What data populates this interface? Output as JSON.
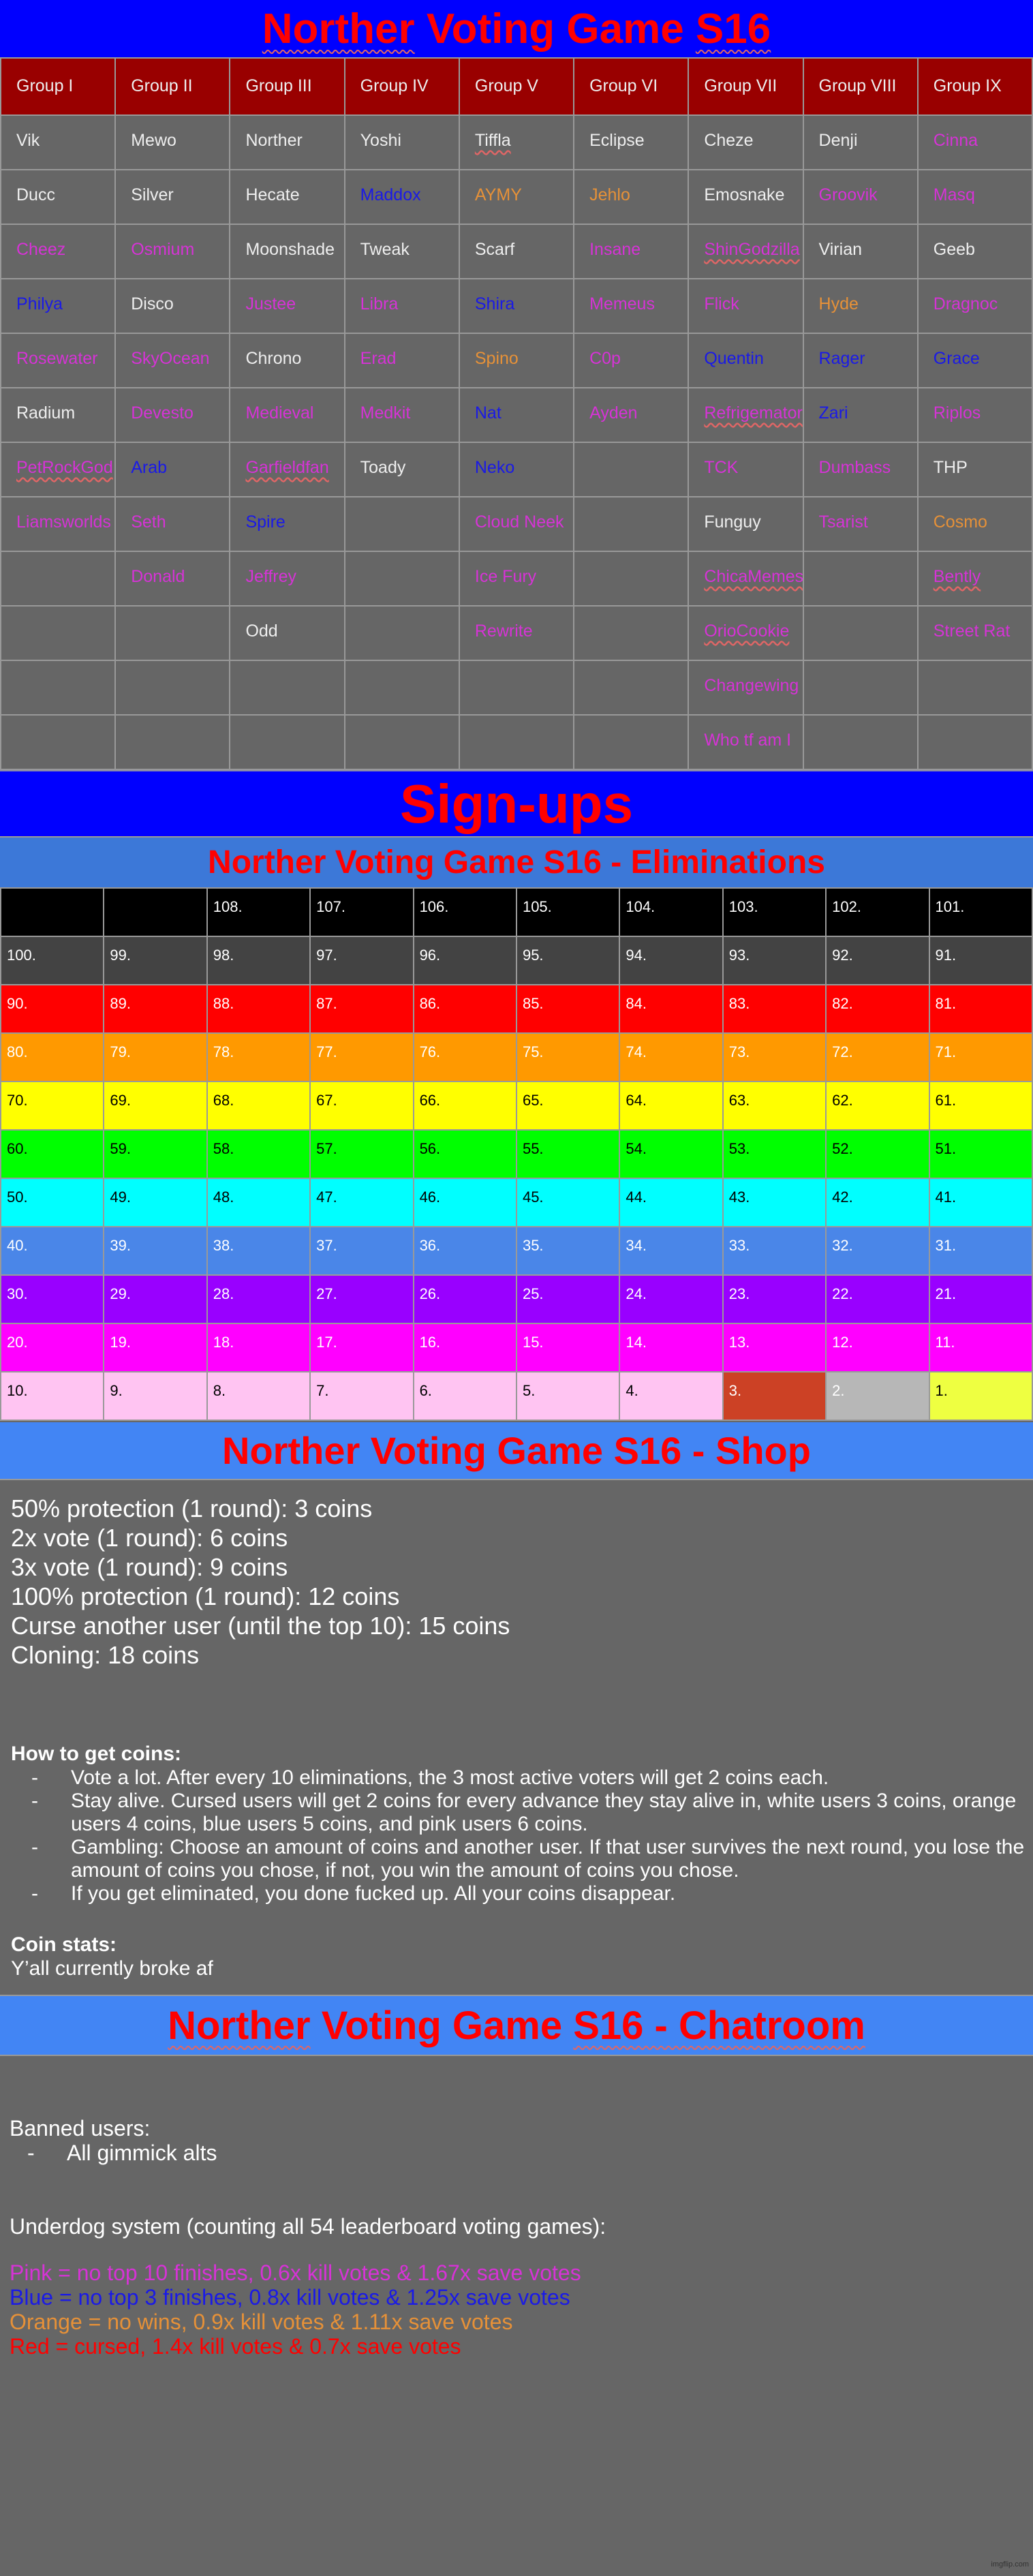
{
  "title": {
    "prefix": "Norther",
    "mid": " Voting Game ",
    "suffix": "S16"
  },
  "colors": {
    "white": "#eeeeee",
    "pink": "#d633d6",
    "blue": "#1a1ae6",
    "orange": "#e69138",
    "red": "#ff0000"
  },
  "groups": [
    {
      "header": "Group I",
      "members": [
        {
          "name": "Vik",
          "tier": "white"
        },
        {
          "name": "Ducc",
          "tier": "white"
        },
        {
          "name": "Cheez",
          "tier": "pink"
        },
        {
          "name": "Philya",
          "tier": "blue"
        },
        {
          "name": "Rosewater",
          "tier": "pink"
        },
        {
          "name": "Radium",
          "tier": "white"
        },
        {
          "name": "PetRockGod",
          "tier": "pink",
          "flagged": true
        },
        {
          "name": "Liamsworlds",
          "tier": "pink"
        }
      ]
    },
    {
      "header": "Group II",
      "members": [
        {
          "name": "Mewo",
          "tier": "white"
        },
        {
          "name": "Silver",
          "tier": "white"
        },
        {
          "name": "Osmium",
          "tier": "pink"
        },
        {
          "name": "Disco",
          "tier": "white"
        },
        {
          "name": "SkyOcean",
          "tier": "pink"
        },
        {
          "name": "Devesto",
          "tier": "pink"
        },
        {
          "name": "Arab",
          "tier": "blue"
        },
        {
          "name": "Seth",
          "tier": "pink"
        },
        {
          "name": "Donald",
          "tier": "pink"
        }
      ]
    },
    {
      "header": "Group III",
      "members": [
        {
          "name": "Norther",
          "tier": "white"
        },
        {
          "name": "Hecate",
          "tier": "white"
        },
        {
          "name": "Moonshade",
          "tier": "white"
        },
        {
          "name": "Justee",
          "tier": "pink"
        },
        {
          "name": "Chrono",
          "tier": "white"
        },
        {
          "name": "Medieval",
          "tier": "pink"
        },
        {
          "name": "Garfieldfan",
          "tier": "pink",
          "flagged": true
        },
        {
          "name": "Spire",
          "tier": "blue"
        },
        {
          "name": "Jeffrey",
          "tier": "pink"
        },
        {
          "name": "Odd",
          "tier": "white"
        }
      ]
    },
    {
      "header": "Group IV",
      "members": [
        {
          "name": "Yoshi",
          "tier": "white"
        },
        {
          "name": "Maddox",
          "tier": "blue"
        },
        {
          "name": "Tweak",
          "tier": "white"
        },
        {
          "name": "Libra",
          "tier": "pink"
        },
        {
          "name": "Erad",
          "tier": "pink"
        },
        {
          "name": "Medkit",
          "tier": "pink"
        },
        {
          "name": "Toady",
          "tier": "white"
        }
      ]
    },
    {
      "header": "Group V",
      "members": [
        {
          "name": "Tiffla",
          "tier": "white",
          "flagged": true
        },
        {
          "name": "AYMY",
          "tier": "orange"
        },
        {
          "name": "Scarf",
          "tier": "white"
        },
        {
          "name": "Shira",
          "tier": "blue"
        },
        {
          "name": "Spino",
          "tier": "orange"
        },
        {
          "name": "Nat",
          "tier": "blue"
        },
        {
          "name": "Neko",
          "tier": "blue"
        },
        {
          "name": "Cloud Neek",
          "tier": "pink"
        },
        {
          "name": "Ice Fury",
          "tier": "pink"
        },
        {
          "name": "Rewrite",
          "tier": "pink"
        }
      ]
    },
    {
      "header": "Group VI",
      "members": [
        {
          "name": "Eclipse",
          "tier": "white"
        },
        {
          "name": "Jehlo",
          "tier": "orange"
        },
        {
          "name": "Insane",
          "tier": "pink"
        },
        {
          "name": "Memeus",
          "tier": "pink"
        },
        {
          "name": "C0p",
          "tier": "pink"
        },
        {
          "name": "Ayden",
          "tier": "pink"
        }
      ]
    },
    {
      "header": "Group VII",
      "members": [
        {
          "name": "Cheze",
          "tier": "white"
        },
        {
          "name": "Emosnake",
          "tier": "white"
        },
        {
          "name": "ShinGodzilla",
          "tier": "pink",
          "flagged": true
        },
        {
          "name": "Flick",
          "tier": "pink"
        },
        {
          "name": "Quentin",
          "tier": "blue"
        },
        {
          "name": "Refrigemator",
          "tier": "pink",
          "flagged": true
        },
        {
          "name": "TCK",
          "tier": "pink"
        },
        {
          "name": "Funguy",
          "tier": "white"
        },
        {
          "name": "ChicaMemes",
          "tier": "pink",
          "flagged": true
        },
        {
          "name": "OrioCookie",
          "tier": "pink",
          "flagged": true
        },
        {
          "name": "Changewing",
          "tier": "pink"
        },
        {
          "name": "Who tf am I",
          "tier": "pink"
        }
      ]
    },
    {
      "header": "Group VIII",
      "members": [
        {
          "name": "Denji",
          "tier": "white"
        },
        {
          "name": "Groovik",
          "tier": "pink"
        },
        {
          "name": "Virian",
          "tier": "white"
        },
        {
          "name": "Hyde",
          "tier": "orange"
        },
        {
          "name": "Rager",
          "tier": "blue"
        },
        {
          "name": "Zari",
          "tier": "blue"
        },
        {
          "name": "Dumbass",
          "tier": "pink"
        },
        {
          "name": "Tsarist",
          "tier": "pink"
        }
      ]
    },
    {
      "header": "Group IX",
      "members": [
        {
          "name": "Cinna",
          "tier": "pink"
        },
        {
          "name": "Masq",
          "tier": "pink"
        },
        {
          "name": "Geeb",
          "tier": "white"
        },
        {
          "name": "Dragnoc",
          "tier": "pink"
        },
        {
          "name": "Grace",
          "tier": "blue"
        },
        {
          "name": "Riplos",
          "tier": "pink"
        },
        {
          "name": "THP",
          "tier": "white"
        },
        {
          "name": "Cosmo",
          "tier": "orange"
        },
        {
          "name": "Bently",
          "tier": "pink",
          "flagged": true
        },
        {
          "name": "Street Rat",
          "tier": "pink"
        }
      ]
    }
  ],
  "signups_label": "Sign-ups",
  "eliminations": {
    "title": "Norther Voting Game S16 - Eliminations",
    "rows": [
      {
        "bg": "#000000",
        "fg": "#ffffff",
        "cells": [
          "",
          "",
          "108.",
          "107.",
          "106.",
          "105.",
          "104.",
          "103.",
          "102.",
          "101."
        ]
      },
      {
        "bg": "#434343",
        "fg": "#ffffff",
        "cells": [
          "100.",
          "99.",
          "98.",
          "97.",
          "96.",
          "95.",
          "94.",
          "93.",
          "92.",
          "91."
        ]
      },
      {
        "bg": "#ff0000",
        "fg": "#ffffff",
        "cells": [
          "90.",
          "89.",
          "88.",
          "87.",
          "86.",
          "85.",
          "84.",
          "83.",
          "82.",
          "81."
        ]
      },
      {
        "bg": "#ff9900",
        "fg": "#ffffff",
        "cells": [
          "80.",
          "79.",
          "78.",
          "77.",
          "76.",
          "75.",
          "74.",
          "73.",
          "72.",
          "71."
        ]
      },
      {
        "bg": "#ffff00",
        "fg": "#000000",
        "cells": [
          "70.",
          "69.",
          "68.",
          "67.",
          "66.",
          "65.",
          "64.",
          "63.",
          "62.",
          "61."
        ]
      },
      {
        "bg": "#00ff00",
        "fg": "#000000",
        "cells": [
          "60.",
          "59.",
          "58.",
          "57.",
          "56.",
          "55.",
          "54.",
          "53.",
          "52.",
          "51."
        ]
      },
      {
        "bg": "#00ffff",
        "fg": "#000000",
        "cells": [
          "50.",
          "49.",
          "48.",
          "47.",
          "46.",
          "45.",
          "44.",
          "43.",
          "42.",
          "41."
        ]
      },
      {
        "bg": "#4a86e8",
        "fg": "#ffffff",
        "cells": [
          "40.",
          "39.",
          "38.",
          "37.",
          "36.",
          "35.",
          "34.",
          "33.",
          "32.",
          "31."
        ]
      },
      {
        "bg": "#9900ff",
        "fg": "#ffffff",
        "cells": [
          "30.",
          "29.",
          "28.",
          "27.",
          "26.",
          "25.",
          "24.",
          "23.",
          "22.",
          "21."
        ]
      },
      {
        "bg": "#ff00ff",
        "fg": "#ffffff",
        "cells": [
          "20.",
          "19.",
          "18.",
          "17.",
          "16.",
          "15.",
          "14.",
          "13.",
          "12.",
          "11."
        ]
      },
      {
        "bg": "#ffc4f2",
        "fg": "#000000",
        "cells": [
          "10.",
          "9.",
          "8.",
          "7.",
          "6.",
          "5.",
          "4.",
          "3.",
          "2.",
          "1."
        ],
        "podium": [
          {
            "bg": "#cc4125",
            "fg": "#ffffff"
          },
          {
            "bg": "#b7b7b7",
            "fg": "#ffffff"
          },
          {
            "bg": "#eeff41",
            "fg": "#000000"
          }
        ]
      }
    ]
  },
  "shop": {
    "title": "Norther Voting Game S16 - Shop",
    "items": [
      "50% protection (1 round): 3 coins",
      "2x vote (1 round): 6 coins",
      "3x vote (1 round): 9 coins",
      "100% protection (1 round): 12 coins",
      "Curse another user (until the top 10): 15 coins",
      "Cloning: 18 coins"
    ],
    "how_title": "How to get coins:",
    "how": [
      "Vote a lot. After every 10 eliminations, the 3 most active voters will get 2 coins each.",
      "Stay alive. Cursed users will get 2 coins for every advance they stay alive in, white users 3 coins, orange users 4 coins, blue users 5 coins, and pink users 6 coins.",
      "Gambling: Choose an amount of coins and another user. If that user survives the next round, you lose the amount of coins you chose, if not, you win the amount of coins you chose.",
      "If you get eliminated, you done fucked up. All your coins disappear."
    ],
    "stats_title": "Coin stats:",
    "stats": "Y’all currently broke af"
  },
  "chatroom": {
    "title_a": "Norther",
    "title_b": " Voting Game ",
    "title_c": "S16 - Chatroom",
    "banned_title": "Banned users:",
    "banned": [
      "All gimmick alts"
    ],
    "underdog_title": "Underdog system (counting all 54 leaderboard voting games):",
    "tiers": [
      {
        "text": "Pink = no top 10 finishes, 0.6x kill votes & 1.67x save votes",
        "color": "#d633d6"
      },
      {
        "text": "Blue = no top 3 finishes, 0.8x kill votes & 1.25x save votes",
        "color": "#1a1ae6"
      },
      {
        "text": "Orange = no wins, 0.9x kill votes & 1.11x save votes",
        "color": "#e69138"
      },
      {
        "text": "Red = cursed, 1.4x kill votes & 0.7x save votes",
        "color": "#ff0000"
      }
    ]
  },
  "watermark": "imgflip.com"
}
